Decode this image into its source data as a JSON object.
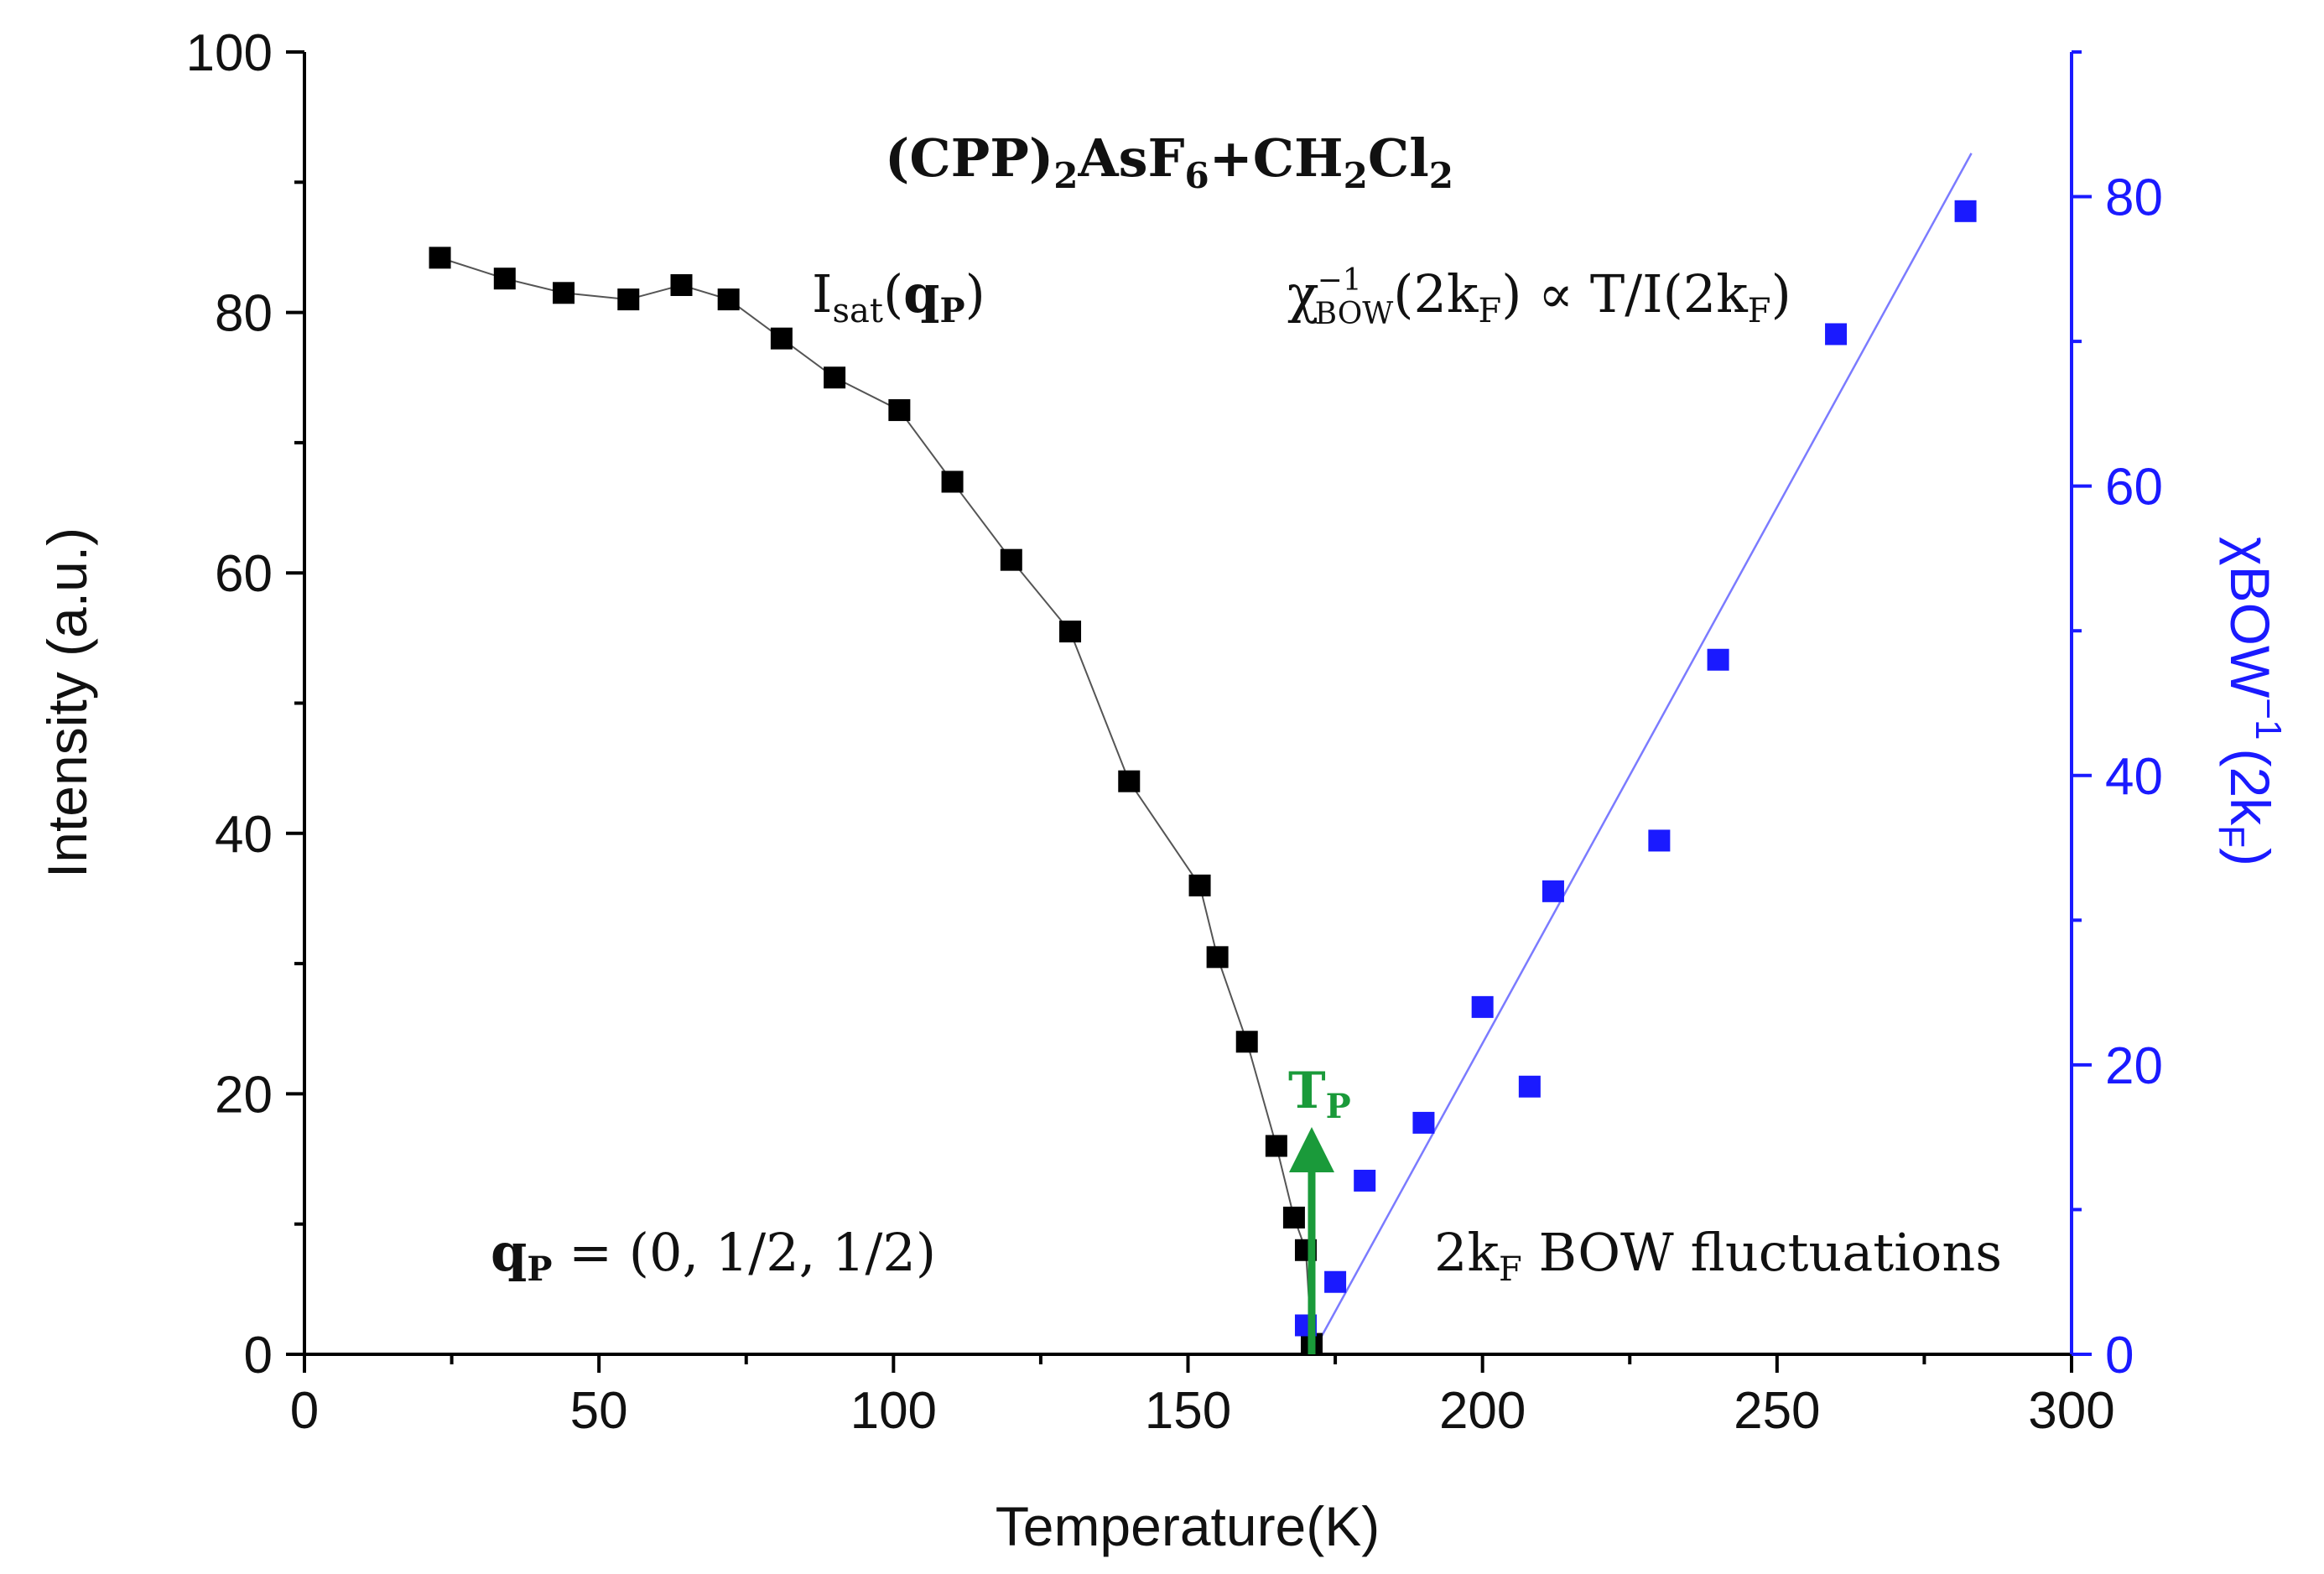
{
  "chart_data": {
    "type": "scatter",
    "title": "(CPP)2AsF6+CH2Cl2",
    "xlabel": "Temperature(K)",
    "ylabel": "Intensity (a.u.)",
    "y2label": "χBOW⁻¹(2kF)",
    "xlim": [
      0,
      300
    ],
    "ylim": [
      0,
      100
    ],
    "y2lim": [
      0,
      90
    ],
    "x_ticks": [
      0,
      50,
      100,
      150,
      200,
      250,
      300
    ],
    "y_ticks": [
      0,
      20,
      40,
      60,
      80,
      100
    ],
    "y2_ticks": [
      0,
      20,
      40,
      60,
      80
    ],
    "series": [
      {
        "name": "Isat(qP)",
        "axis": "left",
        "color": "#000000",
        "marker": "square",
        "connected": true,
        "x": [
          23,
          34,
          44,
          55,
          64,
          72,
          81,
          90,
          101,
          110,
          120,
          130,
          140,
          152,
          155,
          160,
          165,
          168,
          170,
          171
        ],
        "y": [
          84.2,
          82.6,
          81.5,
          81.0,
          82.1,
          81.0,
          78.0,
          75.0,
          72.5,
          67.0,
          61.0,
          55.5,
          44.0,
          36.0,
          30.5,
          24.0,
          16.0,
          10.5,
          8.0,
          0.8
        ]
      },
      {
        "name": "χBOW⁻¹(2kF)",
        "axis": "right",
        "color": "#1a1aff",
        "marker": "square",
        "connected": false,
        "x": [
          170,
          175,
          180,
          190,
          200,
          208,
          212,
          230,
          240,
          260,
          282
        ],
        "y": [
          2,
          5,
          12,
          16,
          24,
          18.5,
          32,
          35.5,
          48,
          70.5,
          79
        ]
      }
    ],
    "fit_line": {
      "axis": "right",
      "color": "#7b7bff",
      "x": [
        171,
        283
      ],
      "y": [
        0,
        83
      ]
    },
    "annotations": {
      "compound": "(CPP)",
      "compound_sub1": "2",
      "compound_mid": "AsF",
      "compound_sub2": "6",
      "compound_mid2": "+CH",
      "compound_sub3": "2",
      "compound_mid3": "Cl",
      "compound_sub4": "2",
      "isat_main": "I",
      "isat_sub": "sat",
      "isat_open": "(",
      "isat_q": "q",
      "isat_qsub": "P",
      "isat_close": ")",
      "chi_main": "χ",
      "chi_sup": "−1",
      "chi_sub": "BOW",
      "chi_rest1": "(2k",
      "chi_rest1_sub": "F",
      "chi_rest2": ") ∝ T/I(2k",
      "chi_rest2_sub": "F",
      "chi_rest3": ")",
      "qp_main": "q",
      "qp_sub": "P",
      "qp_rest": " = (0, 1/2, 1/2)",
      "fluct_main": "2k",
      "fluct_sub": "F",
      "fluct_rest": " BOW fluctuations",
      "tp_main": "T",
      "tp_sub": "P",
      "tp_value_K": 171,
      "tp_arrow_top": 17
    },
    "right_axis_label": {
      "main": "χBOW",
      "sup": "−1",
      "rest": "(2k",
      "sub": "F",
      "close": ")"
    }
  }
}
